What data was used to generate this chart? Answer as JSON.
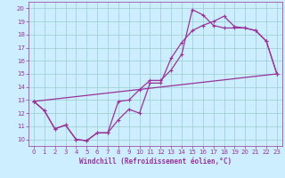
{
  "xlabel": "Windchill (Refroidissement éolien,°C)",
  "bg_color": "#cceeff",
  "line_color": "#993399",
  "grid_color": "#99cccc",
  "xlim": [
    -0.5,
    23.5
  ],
  "ylim": [
    9.5,
    20.5
  ],
  "xticks": [
    0,
    1,
    2,
    3,
    4,
    5,
    6,
    7,
    8,
    9,
    10,
    11,
    12,
    13,
    14,
    15,
    16,
    17,
    18,
    19,
    20,
    21,
    22,
    23
  ],
  "yticks": [
    10,
    11,
    12,
    13,
    14,
    15,
    16,
    17,
    18,
    19,
    20
  ],
  "line1_x": [
    0,
    1,
    2,
    3,
    4,
    5,
    6,
    7,
    8,
    9,
    10,
    11,
    12,
    13,
    14,
    15,
    16,
    17,
    18,
    19,
    20,
    21,
    22,
    23
  ],
  "line1_y": [
    12.9,
    12.2,
    10.8,
    11.1,
    10.0,
    9.9,
    10.5,
    10.5,
    11.5,
    12.3,
    12.0,
    14.3,
    14.3,
    16.2,
    17.4,
    18.3,
    18.7,
    19.0,
    19.4,
    18.6,
    18.5,
    18.3,
    17.5,
    15.0
  ],
  "line2_x": [
    0,
    1,
    2,
    3,
    4,
    5,
    6,
    7,
    8,
    9,
    10,
    11,
    12,
    13,
    14,
    15,
    16,
    17,
    18,
    19,
    20,
    21,
    22,
    23
  ],
  "line2_y": [
    12.9,
    12.2,
    10.8,
    11.1,
    10.0,
    9.9,
    10.5,
    10.5,
    12.9,
    13.0,
    13.8,
    14.5,
    14.5,
    15.3,
    16.5,
    19.9,
    19.5,
    18.7,
    18.5,
    18.5,
    18.5,
    18.3,
    17.5,
    15.0
  ],
  "line3_x": [
    0,
    23
  ],
  "line3_y": [
    12.9,
    15.0
  ]
}
